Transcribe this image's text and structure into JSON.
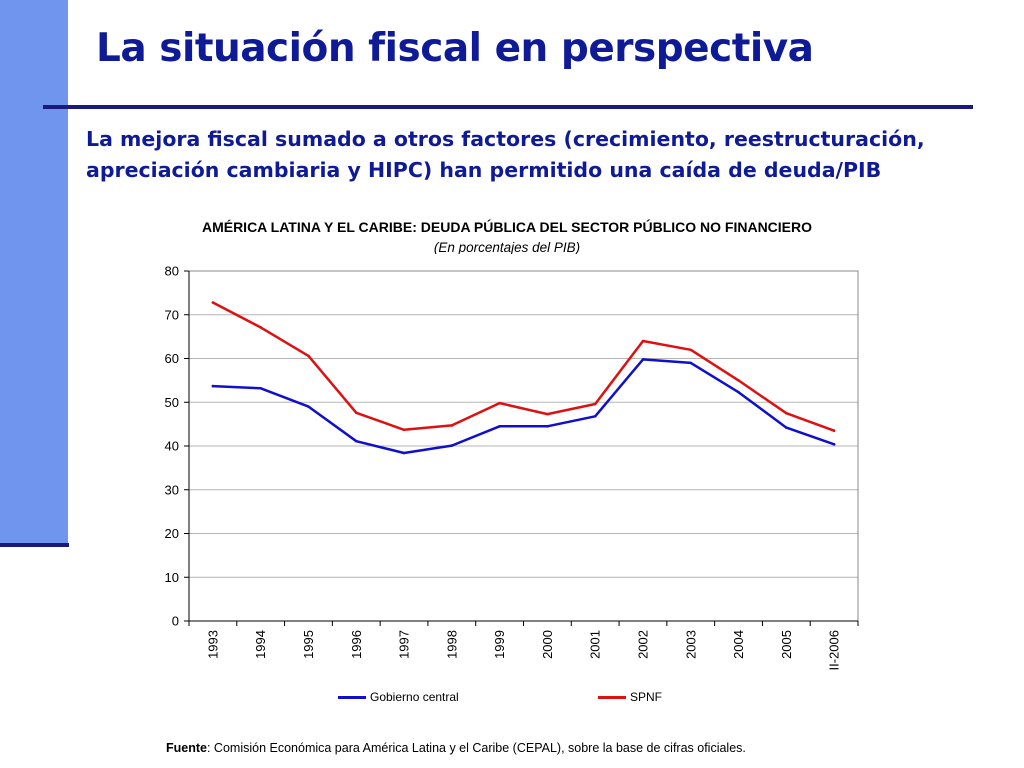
{
  "slide": {
    "title": "La situación fiscal en perspectiva",
    "subtitle": "La mejora fiscal sumado a otros factores (crecimiento, reestructuración, apreciación cambiaria y HIPC) han permitido una caída de deuda/PIB",
    "source_label": "Fuente",
    "source_text": ": Comisión Económica para América Latina y el Caribe (CEPAL), sobre la base de cifras oficiales.",
    "colors": {
      "title": "#0f1a96",
      "side_bar": "#6f95ee",
      "rule": "#1a1a7a"
    }
  },
  "chart_data": {
    "type": "line",
    "title": "AMÉRICA LATINA Y EL CARIBE: DEUDA PÚBLICA DEL SECTOR PÚBLICO NO FINANCIERO",
    "subtitle": "(En porcentajes del PIB)",
    "categories": [
      "1993",
      "1994",
      "1995",
      "1996",
      "1997",
      "1998",
      "1999",
      "2000",
      "2001",
      "2002",
      "2003",
      "2004",
      "2005",
      "II-2006"
    ],
    "ylim": [
      0,
      80
    ],
    "yticks": [
      0,
      10,
      20,
      30,
      40,
      50,
      60,
      70,
      80
    ],
    "grid": true,
    "legend_position": "bottom",
    "series": [
      {
        "name": "Gobierno central",
        "color": "#1010cc",
        "values": [
          53.7,
          53.2,
          49.0,
          41.1,
          38.4,
          40.1,
          44.5,
          44.5,
          46.8,
          59.8,
          59.0,
          52.3,
          44.2,
          40.4
        ]
      },
      {
        "name": "SPNF",
        "color": "#dd1111",
        "values": [
          72.8,
          67.1,
          60.6,
          47.6,
          43.7,
          44.7,
          49.8,
          47.3,
          49.6,
          64.0,
          62.0,
          55.0,
          47.5,
          43.5
        ]
      }
    ]
  }
}
